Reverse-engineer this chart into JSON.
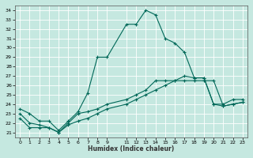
{
  "title": "",
  "xlabel": "Humidex (Indice chaleur)",
  "bg_color": "#c5e8e0",
  "grid_color": "#b0d8d0",
  "line_color": "#006858",
  "xlim": [
    -0.5,
    23.5
  ],
  "ylim": [
    20.5,
    34.5
  ],
  "xticks": [
    0,
    1,
    2,
    3,
    4,
    5,
    6,
    7,
    8,
    9,
    11,
    12,
    13,
    14,
    15,
    16,
    17,
    18,
    19,
    20,
    21,
    22,
    23
  ],
  "yticks": [
    21,
    22,
    23,
    24,
    25,
    26,
    27,
    28,
    29,
    30,
    31,
    32,
    33,
    34
  ],
  "line1_x": [
    0,
    1,
    2,
    3,
    4,
    5,
    6,
    7,
    8,
    9,
    11,
    12,
    13,
    14,
    15,
    16,
    17,
    18,
    19,
    20,
    21,
    22,
    23
  ],
  "line1_y": [
    23.5,
    23.0,
    22.2,
    22.2,
    21.2,
    22.2,
    23.2,
    25.2,
    29.0,
    29.0,
    32.5,
    32.5,
    34.0,
    33.5,
    31.0,
    30.5,
    29.5,
    26.8,
    26.8,
    24.0,
    24.0,
    24.5,
    24.5
  ],
  "line2_x": [
    0,
    1,
    2,
    3,
    4,
    5,
    6,
    7,
    8,
    9,
    11,
    12,
    13,
    14,
    15,
    16,
    17,
    18,
    19,
    20,
    21,
    22,
    23
  ],
  "line2_y": [
    23.0,
    22.0,
    21.8,
    21.5,
    21.0,
    22.0,
    23.0,
    23.2,
    23.5,
    24.0,
    24.5,
    25.0,
    25.5,
    26.5,
    26.5,
    26.5,
    27.0,
    26.8,
    26.8,
    24.0,
    23.8,
    24.0,
    24.2
  ],
  "line3_x": [
    0,
    1,
    2,
    3,
    4,
    5,
    6,
    7,
    8,
    9,
    11,
    12,
    13,
    14,
    15,
    16,
    17,
    18,
    19,
    20,
    21,
    22,
    23
  ],
  "line3_y": [
    22.5,
    21.5,
    21.5,
    21.5,
    21.0,
    21.8,
    22.2,
    22.5,
    23.0,
    23.5,
    24.0,
    24.5,
    25.0,
    25.5,
    26.0,
    26.5,
    26.5,
    26.5,
    26.5,
    26.5,
    23.8,
    24.0,
    24.2
  ]
}
